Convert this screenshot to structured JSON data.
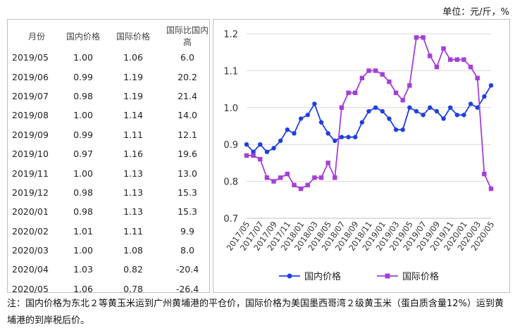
{
  "unit_label": "单位：元/斤，%",
  "table": {
    "headers": [
      "月份",
      "国内价格",
      "国际价格",
      "国际比国内高"
    ],
    "rows": [
      [
        "2019/05",
        "1.00",
        "1.06",
        "6.0"
      ],
      [
        "2019/06",
        "0.99",
        "1.19",
        "20.2"
      ],
      [
        "2019/07",
        "0.98",
        "1.19",
        "21.4"
      ],
      [
        "2019/08",
        "1.00",
        "1.14",
        "14.0"
      ],
      [
        "2019/09",
        "0.99",
        "1.11",
        "12.1"
      ],
      [
        "2019/10",
        "0.97",
        "1.16",
        "19.6"
      ],
      [
        "2019/11",
        "1.00",
        "1.13",
        "13.0"
      ],
      [
        "2019/12",
        "0.98",
        "1.13",
        "15.3"
      ],
      [
        "2020/01",
        "0.98",
        "1.13",
        "15.3"
      ],
      [
        "2020/02",
        "1.01",
        "1.11",
        "9.9"
      ],
      [
        "2020/03",
        "1.00",
        "1.08",
        "8.0"
      ],
      [
        "2020/04",
        "1.03",
        "0.82",
        "-20.4"
      ],
      [
        "2020/05",
        "1.06",
        "0.78",
        "-26.4"
      ]
    ]
  },
  "chart_data": {
    "type": "line",
    "ylim": [
      0.7,
      1.2
    ],
    "yticks": [
      "0.7",
      "0.8",
      "0.9",
      "1.0",
      "1.1",
      "1.2"
    ],
    "x": [
      "2017/05",
      "2017/06",
      "2017/07",
      "2017/08",
      "2017/09",
      "2017/10",
      "2017/11",
      "2017/12",
      "2018/01",
      "2018/02",
      "2018/03",
      "2018/04",
      "2018/05",
      "2018/06",
      "2018/07",
      "2018/08",
      "2018/09",
      "2018/10",
      "2018/11",
      "2018/12",
      "2019/01",
      "2019/02",
      "2019/03",
      "2019/04",
      "2019/05",
      "2019/06",
      "2019/07",
      "2019/08",
      "2019/09",
      "2019/10",
      "2019/11",
      "2019/12",
      "2020/01",
      "2020/02",
      "2020/03",
      "2020/04",
      "2020/05"
    ],
    "xtick_labels": [
      "2017/05",
      "2017/07",
      "2017/09",
      "2017/11",
      "2018/01",
      "2018/03",
      "2018/05",
      "2018/07",
      "2018/09",
      "2018/11",
      "2019/01",
      "2019/03",
      "2019/05",
      "2019/07",
      "2019/09",
      "2019/11",
      "2020/01",
      "2020/03",
      "2020/05"
    ],
    "series": [
      {
        "name": "国内价格",
        "color": "#1f3fe0",
        "marker": "circle",
        "values": [
          0.9,
          0.88,
          0.9,
          0.88,
          0.89,
          0.91,
          0.94,
          0.93,
          0.97,
          0.98,
          1.01,
          0.96,
          0.93,
          0.91,
          0.92,
          0.92,
          0.92,
          0.96,
          0.99,
          1.0,
          0.99,
          0.97,
          0.94,
          0.94,
          1.0,
          0.99,
          0.98,
          1.0,
          0.99,
          0.97,
          1.0,
          0.98,
          0.98,
          1.01,
          1.0,
          1.03,
          1.06
        ]
      },
      {
        "name": "国际价格",
        "color": "#a43fd8",
        "marker": "square",
        "values": [
          0.87,
          0.87,
          0.86,
          0.81,
          0.8,
          0.81,
          0.82,
          0.79,
          0.78,
          0.79,
          0.81,
          0.81,
          0.85,
          0.81,
          1.0,
          1.04,
          1.04,
          1.08,
          1.1,
          1.1,
          1.09,
          1.07,
          1.04,
          1.02,
          1.06,
          1.19,
          1.19,
          1.14,
          1.11,
          1.16,
          1.13,
          1.13,
          1.13,
          1.11,
          1.08,
          0.82,
          0.78
        ]
      }
    ],
    "grid": "horizontal",
    "legend_position": "bottom"
  },
  "note": "注：国内价格为东北２等黄玉米运到广州黄埔港的平仓价，国际价格为美国墨西哥湾２级黄玉米（蛋白质含量12%）运到黄埔港的到岸税后价。"
}
